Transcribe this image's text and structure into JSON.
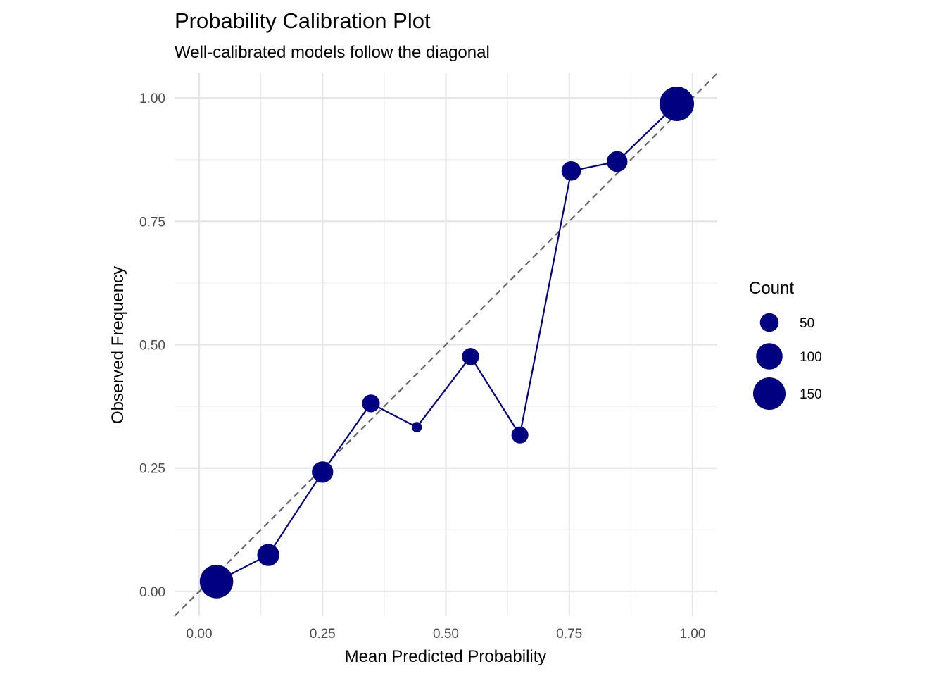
{
  "chart_data": {
    "type": "scatter",
    "title": "Probability Calibration Plot",
    "subtitle": "Well-calibrated models follow the diagonal",
    "xlabel": "Mean Predicted Probability",
    "ylabel": "Observed Frequency",
    "xlim": [
      -0.05,
      1.05
    ],
    "ylim": [
      -0.05,
      1.05
    ],
    "x_ticks": [
      0.0,
      0.25,
      0.5,
      0.75,
      1.0
    ],
    "x_tick_labels": [
      "0.00",
      "0.25",
      "0.50",
      "0.75",
      "1.00"
    ],
    "y_ticks": [
      0.0,
      0.25,
      0.5,
      0.75,
      1.0
    ],
    "y_tick_labels": [
      "0.00",
      "0.25",
      "0.50",
      "0.75",
      "1.00"
    ],
    "grid": true,
    "reference_line": {
      "type": "diagonal",
      "style": "dashed",
      "color": "#666666"
    },
    "series": [
      {
        "color": "#000080",
        "points": [
          {
            "x": 0.035,
            "y": 0.02,
            "count": 160
          },
          {
            "x": 0.14,
            "y": 0.074,
            "count": 70
          },
          {
            "x": 0.25,
            "y": 0.242,
            "count": 65
          },
          {
            "x": 0.348,
            "y": 0.381,
            "count": 45
          },
          {
            "x": 0.441,
            "y": 0.333,
            "count": 15
          },
          {
            "x": 0.55,
            "y": 0.476,
            "count": 42
          },
          {
            "x": 0.65,
            "y": 0.317,
            "count": 41
          },
          {
            "x": 0.754,
            "y": 0.852,
            "count": 54
          },
          {
            "x": 0.847,
            "y": 0.871,
            "count": 62
          },
          {
            "x": 0.968,
            "y": 0.988,
            "count": 170
          }
        ]
      }
    ],
    "legend": {
      "title": "Count",
      "position": "right",
      "entries": [
        {
          "label": "50",
          "count": 50
        },
        {
          "label": "100",
          "count": 100
        },
        {
          "label": "150",
          "count": 150
        }
      ]
    }
  }
}
